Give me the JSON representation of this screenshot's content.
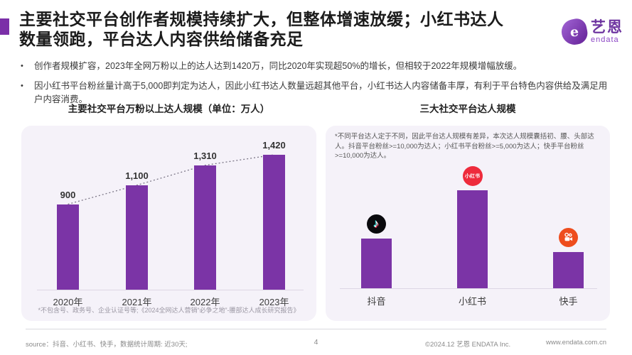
{
  "header": {
    "title_line1": "主要社交平台创作者规模持续扩大，但整体增速放缓；小红书达人",
    "title_line2": "数量领跑，平台达人内容供给储备充足",
    "accent_color": "#7B2FA8",
    "logo": {
      "brand_cn": "艺恩",
      "brand_en": "endata",
      "icon": "endata-e-blob",
      "brand_color": "#7C3FAE"
    }
  },
  "bullets": [
    "创作者规模扩容，2023年全网万粉以上的达人达到1420万，同比2020年实现超50%的增长，但相较于2022年规模增幅放缓。",
    "因小红书平台粉丝量计高于5,000即判定为达人，因此小红书达人数量远超其他平台，小红书达人内容储备丰厚，有利于平台特色内容供给及满足用户内容消费。"
  ],
  "chart_data": [
    {
      "type": "bar",
      "title": "主要社交平台万粉以上达人规模（单位：万人）",
      "categories": [
        "2020年",
        "2021年",
        "2022年",
        "2023年"
      ],
      "values": [
        900,
        1100,
        1310,
        1420
      ],
      "value_labels": [
        "900",
        "1,100",
        "1,310",
        "1,420"
      ],
      "ylim": [
        0,
        1420
      ],
      "bar_color": "#7B34A6",
      "trendline": "dotted",
      "grid": false,
      "legend": "none",
      "footnote": "*不包含号、政务号、企业认证号等;《2024全网达人营销“必争之地”-腰部达人成长研究报告》"
    },
    {
      "type": "bar",
      "title": "三大社交平台达人规模",
      "categories": [
        "抖音",
        "小红书",
        "快手"
      ],
      "values": [
        520,
        1030,
        380
      ],
      "values_estimated": true,
      "value_labels_shown": false,
      "bar_color": "#7B34A6",
      "grid": false,
      "legend": "none",
      "note": "*不同平台达人定于不同，因此平台达人规模有差异，本次达人规模囊括初、腰、头部达人。抖音平台粉丝>=10,000为达人；小红书平台粉丝>=5,000为达人；快手平台粉丝>=10,000为达人。",
      "icons": [
        {
          "type": "douyin",
          "name": "douyin-icon",
          "bg": "#0A0A0E"
        },
        {
          "type": "xiaohongshu",
          "name": "xiaohongshu-icon",
          "bg": "#EE2B3C",
          "label": "小红书"
        },
        {
          "type": "kuaishou",
          "name": "kuaishou-icon",
          "bg": "#EE4D1D"
        }
      ]
    }
  ],
  "footer": {
    "source": "source：抖音、小红书、快手，数据统计周期: 近30天;",
    "page_number": "4",
    "copyright": "©2024.12 艺恩 ENDATA Inc.",
    "website": "www.endata.com.cn"
  }
}
